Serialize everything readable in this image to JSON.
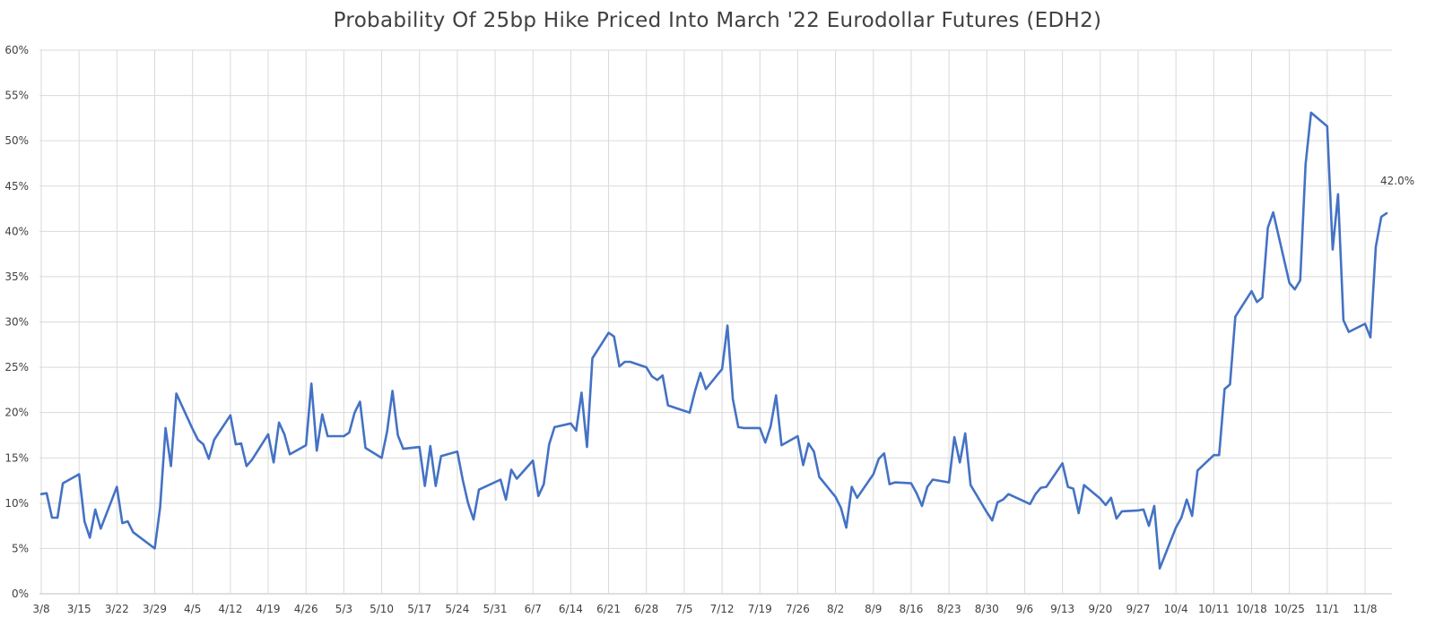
{
  "chart_data": {
    "type": "line",
    "title": "Probability Of 25bp Hike Priced Into March '22 Eurodollar Futures (EDH2)",
    "xlabel": "",
    "ylabel": "",
    "ylim": [
      0,
      60
    ],
    "y_ticks": [
      0,
      5,
      10,
      15,
      20,
      25,
      30,
      35,
      40,
      45,
      50,
      55,
      60
    ],
    "y_tick_labels": [
      "0%",
      "5%",
      "10%",
      "15%",
      "20%",
      "25%",
      "30%",
      "35%",
      "40%",
      "45%",
      "50%",
      "55%",
      "60%"
    ],
    "x_tick_labels": [
      "3/8",
      "3/15",
      "3/22",
      "3/29",
      "4/5",
      "4/12",
      "4/19",
      "4/26",
      "5/3",
      "5/10",
      "5/17",
      "5/24",
      "5/31",
      "6/7",
      "6/14",
      "6/21",
      "6/28",
      "7/5",
      "7/12",
      "7/19",
      "7/26",
      "8/2",
      "8/9",
      "8/16",
      "8/23",
      "8/30",
      "9/6",
      "9/13",
      "9/20",
      "9/27",
      "10/4",
      "10/11",
      "10/18",
      "10/25",
      "11/1",
      "11/8"
    ],
    "grid": true,
    "legend": "none",
    "series_color": "#4472C4",
    "end_label": "42.0%",
    "series": [
      {
        "values": [
          {
            "x": "3/8",
            "y": 11.0
          },
          {
            "x": "3/9",
            "y": 11.1
          },
          {
            "x": "3/10",
            "y": 8.4
          },
          {
            "x": "3/11",
            "y": 8.4
          },
          {
            "x": "3/12",
            "y": 12.2
          },
          {
            "x": "3/15",
            "y": 13.2
          },
          {
            "x": "3/16",
            "y": 8.0
          },
          {
            "x": "3/17",
            "y": 6.2
          },
          {
            "x": "3/18",
            "y": 9.3
          },
          {
            "x": "3/19",
            "y": 7.2
          },
          {
            "x": "3/22",
            "y": 11.8
          },
          {
            "x": "3/23",
            "y": 7.8
          },
          {
            "x": "3/24",
            "y": 8.0
          },
          {
            "x": "3/25",
            "y": 6.8
          },
          {
            "x": "3/29",
            "y": 5.0
          },
          {
            "x": "3/30",
            "y": 9.5
          },
          {
            "x": "3/31",
            "y": 18.3
          },
          {
            "x": "4/1",
            "y": 14.1
          },
          {
            "x": "4/2",
            "y": 22.1
          },
          {
            "x": "4/5",
            "y": 18.2
          },
          {
            "x": "4/6",
            "y": 17.0
          },
          {
            "x": "4/7",
            "y": 16.5
          },
          {
            "x": "4/8",
            "y": 14.9
          },
          {
            "x": "4/9",
            "y": 17.0
          },
          {
            "x": "4/12",
            "y": 19.7
          },
          {
            "x": "4/13",
            "y": 16.5
          },
          {
            "x": "4/14",
            "y": 16.6
          },
          {
            "x": "4/15",
            "y": 14.1
          },
          {
            "x": "4/16",
            "y": 14.8
          },
          {
            "x": "4/19",
            "y": 17.6
          },
          {
            "x": "4/20",
            "y": 14.5
          },
          {
            "x": "4/21",
            "y": 18.9
          },
          {
            "x": "4/22",
            "y": 17.6
          },
          {
            "x": "4/23",
            "y": 15.4
          },
          {
            "x": "4/26",
            "y": 16.4
          },
          {
            "x": "4/27",
            "y": 23.2
          },
          {
            "x": "4/28",
            "y": 15.8
          },
          {
            "x": "4/29",
            "y": 19.8
          },
          {
            "x": "4/30",
            "y": 17.4
          },
          {
            "x": "5/3",
            "y": 17.4
          },
          {
            "x": "5/4",
            "y": 17.8
          },
          {
            "x": "5/5",
            "y": 20.0
          },
          {
            "x": "5/6",
            "y": 21.2
          },
          {
            "x": "5/7",
            "y": 16.1
          },
          {
            "x": "5/10",
            "y": 15.0
          },
          {
            "x": "5/11",
            "y": 17.9
          },
          {
            "x": "5/12",
            "y": 22.4
          },
          {
            "x": "5/13",
            "y": 17.5
          },
          {
            "x": "5/14",
            "y": 16.0
          },
          {
            "x": "5/17",
            "y": 16.2
          },
          {
            "x": "5/18",
            "y": 11.9
          },
          {
            "x": "5/19",
            "y": 16.3
          },
          {
            "x": "5/20",
            "y": 11.9
          },
          {
            "x": "5/21",
            "y": 15.2
          },
          {
            "x": "5/24",
            "y": 15.7
          },
          {
            "x": "5/25",
            "y": 12.6
          },
          {
            "x": "5/26",
            "y": 10.0
          },
          {
            "x": "5/27",
            "y": 8.2
          },
          {
            "x": "5/28",
            "y": 11.5
          },
          {
            "x": "6/1",
            "y": 12.6
          },
          {
            "x": "6/2",
            "y": 10.4
          },
          {
            "x": "6/3",
            "y": 13.7
          },
          {
            "x": "6/4",
            "y": 12.7
          },
          {
            "x": "6/7",
            "y": 14.7
          },
          {
            "x": "6/8",
            "y": 10.8
          },
          {
            "x": "6/9",
            "y": 12.1
          },
          {
            "x": "6/10",
            "y": 16.5
          },
          {
            "x": "6/11",
            "y": 18.4
          },
          {
            "x": "6/14",
            "y": 18.8
          },
          {
            "x": "6/15",
            "y": 18.0
          },
          {
            "x": "6/16",
            "y": 22.2
          },
          {
            "x": "6/17",
            "y": 16.2
          },
          {
            "x": "6/18",
            "y": 26.0
          },
          {
            "x": "6/21",
            "y": 28.8
          },
          {
            "x": "6/22",
            "y": 28.4
          },
          {
            "x": "6/23",
            "y": 25.1
          },
          {
            "x": "6/24",
            "y": 25.6
          },
          {
            "x": "6/25",
            "y": 25.6
          },
          {
            "x": "6/28",
            "y": 25.0
          },
          {
            "x": "6/29",
            "y": 24.0
          },
          {
            "x": "6/30",
            "y": 23.6
          },
          {
            "x": "7/1",
            "y": 24.1
          },
          {
            "x": "7/2",
            "y": 20.8
          },
          {
            "x": "7/6",
            "y": 20.0
          },
          {
            "x": "7/7",
            "y": 22.4
          },
          {
            "x": "7/8",
            "y": 24.4
          },
          {
            "x": "7/9",
            "y": 22.6
          },
          {
            "x": "7/12",
            "y": 24.8
          },
          {
            "x": "7/13",
            "y": 29.6
          },
          {
            "x": "7/14",
            "y": 21.5
          },
          {
            "x": "7/15",
            "y": 18.4
          },
          {
            "x": "7/16",
            "y": 18.3
          },
          {
            "x": "7/19",
            "y": 18.3
          },
          {
            "x": "7/20",
            "y": 16.7
          },
          {
            "x": "7/21",
            "y": 18.5
          },
          {
            "x": "7/22",
            "y": 21.9
          },
          {
            "x": "7/23",
            "y": 16.4
          },
          {
            "x": "7/26",
            "y": 17.4
          },
          {
            "x": "7/27",
            "y": 14.2
          },
          {
            "x": "7/28",
            "y": 16.6
          },
          {
            "x": "7/29",
            "y": 15.7
          },
          {
            "x": "7/30",
            "y": 12.9
          },
          {
            "x": "8/2",
            "y": 10.7
          },
          {
            "x": "8/3",
            "y": 9.5
          },
          {
            "x": "8/4",
            "y": 7.3
          },
          {
            "x": "8/5",
            "y": 11.8
          },
          {
            "x": "8/6",
            "y": 10.6
          },
          {
            "x": "8/9",
            "y": 13.2
          },
          {
            "x": "8/10",
            "y": 14.9
          },
          {
            "x": "8/11",
            "y": 15.5
          },
          {
            "x": "8/12",
            "y": 12.1
          },
          {
            "x": "8/13",
            "y": 12.3
          },
          {
            "x": "8/16",
            "y": 12.2
          },
          {
            "x": "8/17",
            "y": 11.1
          },
          {
            "x": "8/18",
            "y": 9.7
          },
          {
            "x": "8/19",
            "y": 11.8
          },
          {
            "x": "8/20",
            "y": 12.6
          },
          {
            "x": "8/23",
            "y": 12.3
          },
          {
            "x": "8/24",
            "y": 17.3
          },
          {
            "x": "8/25",
            "y": 14.5
          },
          {
            "x": "8/26",
            "y": 17.7
          },
          {
            "x": "8/27",
            "y": 12.0
          },
          {
            "x": "8/30",
            "y": 9.0
          },
          {
            "x": "8/31",
            "y": 8.1
          },
          {
            "x": "9/1",
            "y": 10.1
          },
          {
            "x": "9/2",
            "y": 10.4
          },
          {
            "x": "9/3",
            "y": 11.0
          },
          {
            "x": "9/7",
            "y": 9.9
          },
          {
            "x": "9/8",
            "y": 11.0
          },
          {
            "x": "9/9",
            "y": 11.7
          },
          {
            "x": "9/10",
            "y": 11.8
          },
          {
            "x": "9/13",
            "y": 14.4
          },
          {
            "x": "9/14",
            "y": 11.8
          },
          {
            "x": "9/15",
            "y": 11.6
          },
          {
            "x": "9/16",
            "y": 8.9
          },
          {
            "x": "9/17",
            "y": 12.0
          },
          {
            "x": "9/20",
            "y": 10.5
          },
          {
            "x": "9/21",
            "y": 9.8
          },
          {
            "x": "9/22",
            "y": 10.6
          },
          {
            "x": "9/23",
            "y": 8.3
          },
          {
            "x": "9/24",
            "y": 9.1
          },
          {
            "x": "9/27",
            "y": 9.2
          },
          {
            "x": "9/28",
            "y": 9.3
          },
          {
            "x": "9/29",
            "y": 7.5
          },
          {
            "x": "9/30",
            "y": 9.7
          },
          {
            "x": "10/1",
            "y": 2.8
          },
          {
            "x": "10/4",
            "y": 7.3
          },
          {
            "x": "10/5",
            "y": 8.4
          },
          {
            "x": "10/6",
            "y": 10.4
          },
          {
            "x": "10/7",
            "y": 8.6
          },
          {
            "x": "10/8",
            "y": 13.6
          },
          {
            "x": "10/11",
            "y": 15.3
          },
          {
            "x": "10/12",
            "y": 15.3
          },
          {
            "x": "10/13",
            "y": 22.6
          },
          {
            "x": "10/14",
            "y": 23.1
          },
          {
            "x": "10/15",
            "y": 30.6
          },
          {
            "x": "10/18",
            "y": 33.4
          },
          {
            "x": "10/19",
            "y": 32.2
          },
          {
            "x": "10/20",
            "y": 32.7
          },
          {
            "x": "10/21",
            "y": 40.4
          },
          {
            "x": "10/22",
            "y": 42.1
          },
          {
            "x": "10/25",
            "y": 34.3
          },
          {
            "x": "10/26",
            "y": 33.6
          },
          {
            "x": "10/27",
            "y": 34.6
          },
          {
            "x": "10/28",
            "y": 47.4
          },
          {
            "x": "10/29",
            "y": 53.1
          },
          {
            "x": "11/1",
            "y": 51.6
          },
          {
            "x": "11/2",
            "y": 38.0
          },
          {
            "x": "11/3",
            "y": 44.1
          },
          {
            "x": "11/4",
            "y": 30.2
          },
          {
            "x": "11/5",
            "y": 28.9
          },
          {
            "x": "11/8",
            "y": 29.8
          },
          {
            "x": "11/9",
            "y": 28.3
          },
          {
            "x": "11/10",
            "y": 38.3
          },
          {
            "x": "11/11",
            "y": 41.6
          },
          {
            "x": "11/12",
            "y": 42.0
          }
        ]
      }
    ]
  }
}
